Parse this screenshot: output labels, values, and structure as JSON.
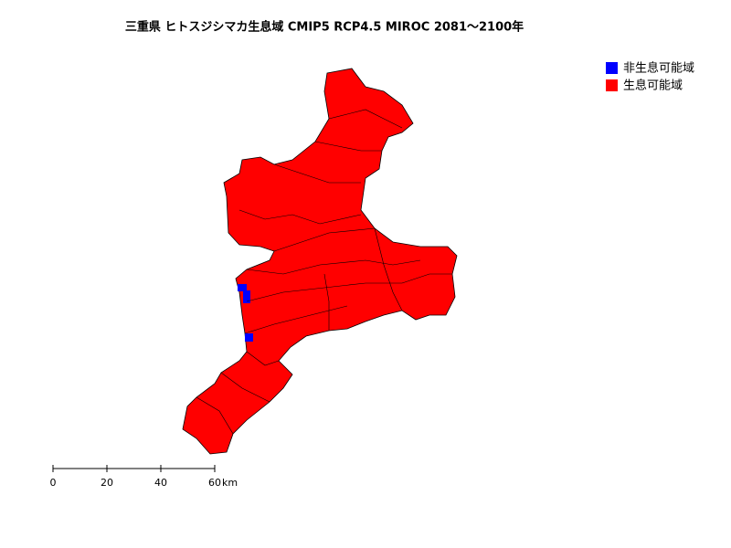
{
  "title": "三重県 ヒトスジシマカ生息域 CMIP5 RCP4.5 MIROC 2081～2100年",
  "legend": [
    {
      "label": "非生息可能域",
      "color": "#0000ff"
    },
    {
      "label": "生息可能域",
      "color": "#ff0000"
    }
  ],
  "scale_bar": {
    "ticks": [
      0,
      20,
      40,
      60
    ],
    "unit": "km"
  }
}
